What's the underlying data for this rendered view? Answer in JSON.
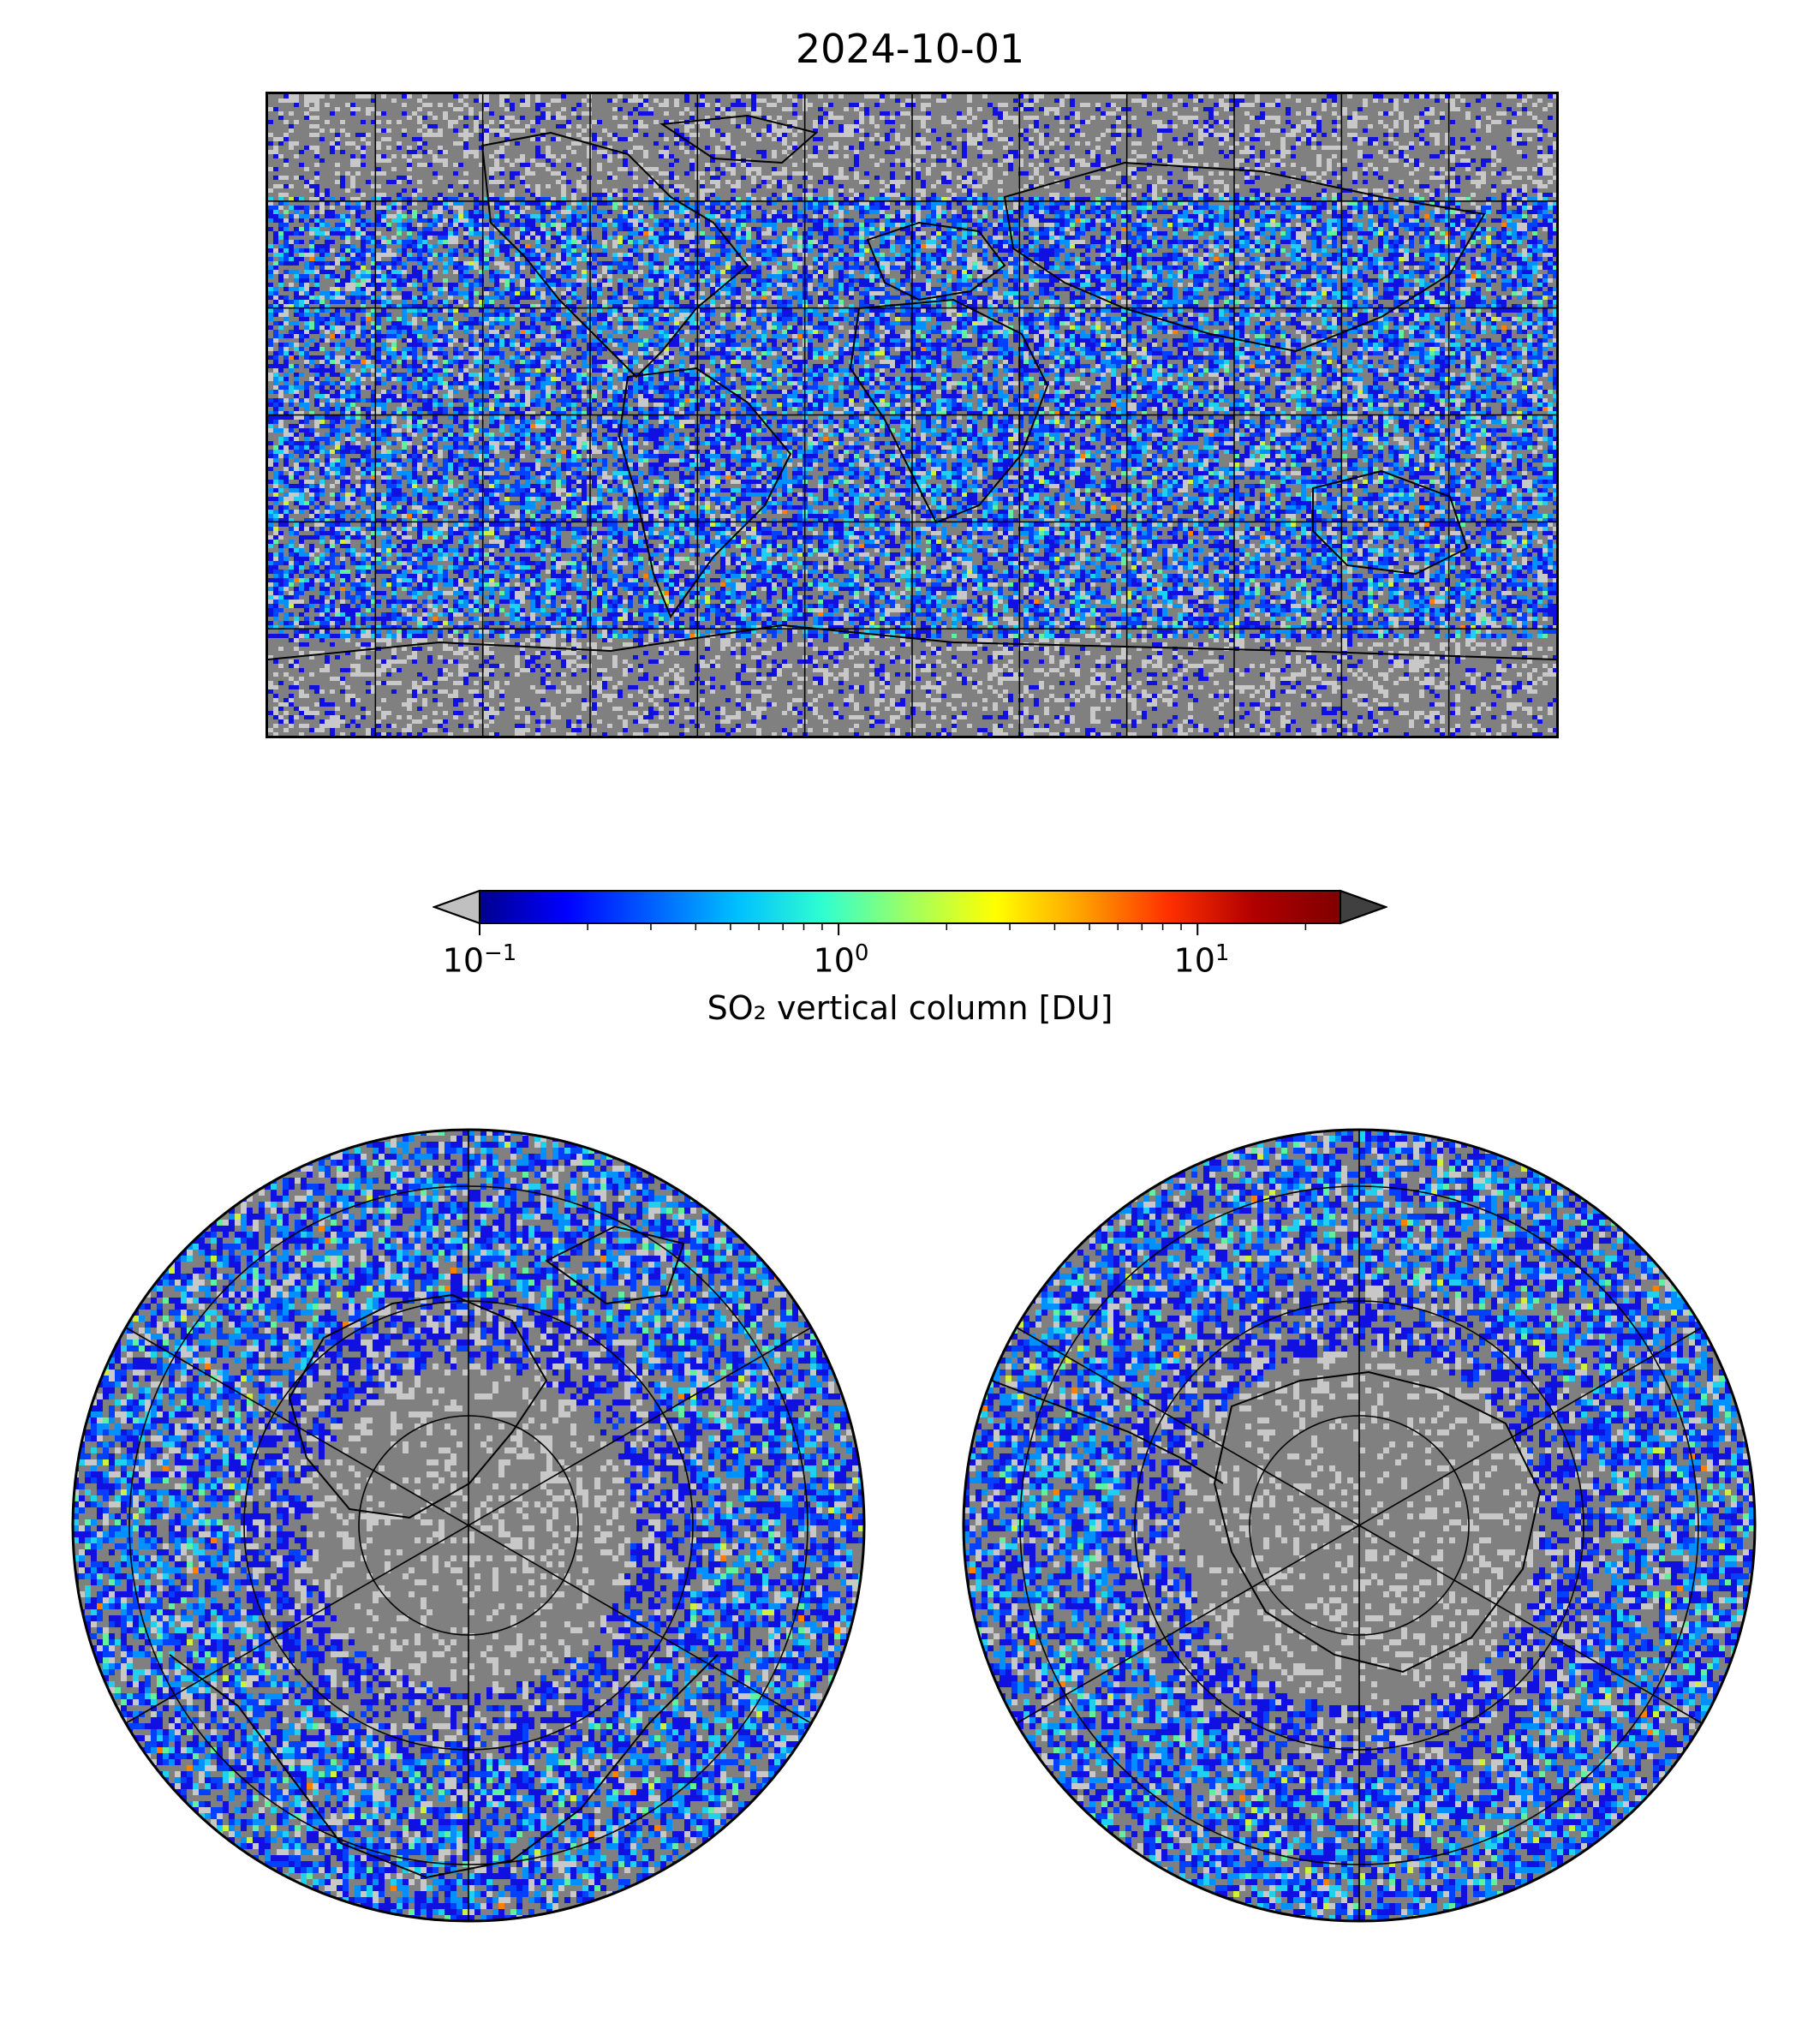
{
  "title": "2024-10-01",
  "colorbar": {
    "label": "SO₂ vertical column [DU]",
    "scale": "log",
    "range": [
      0.1,
      25
    ],
    "colormap": "jet",
    "extend": "both",
    "under_color": "#c0c0c0",
    "over_color": "#404040",
    "ticks": [
      {
        "value": 0.1,
        "base": "10",
        "exp": "−1"
      },
      {
        "value": 1,
        "base": "10",
        "exp": "0"
      },
      {
        "value": 10,
        "base": "10",
        "exp": "1"
      }
    ]
  },
  "maps": {
    "global": {
      "projection": "equirectangular",
      "graticule_deg": 30,
      "nodata_color": "#808080"
    },
    "north": {
      "projection": "north-polar-stereographic",
      "graticule": "circles + 6 meridians"
    },
    "south": {
      "projection": "south-polar-stereographic",
      "graticule": "circles + 6 meridians"
    }
  }
}
